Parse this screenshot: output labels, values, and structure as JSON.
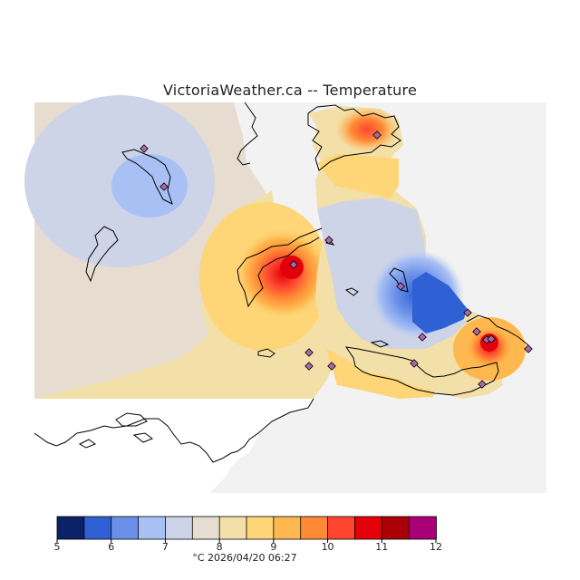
{
  "title": "VictoriaWeather.ca -- Temperature",
  "legend": {
    "ticks": [
      "5",
      "6",
      "7",
      "8",
      "9",
      "10",
      "11",
      "12"
    ],
    "colors": [
      "#0b2266",
      "#2f60d4",
      "#6a90e8",
      "#a9c0f4",
      "#cdd4e8",
      "#e6ddd0",
      "#f2e0a8",
      "#fed577",
      "#ffb84f",
      "#ff8a36",
      "#ff4530",
      "#e40008",
      "#aa0006",
      "#aa0077"
    ]
  },
  "footer": "°C  2026/04/20 06:27",
  "colors": {
    "ocean": "#f2f2f2",
    "land": "#ffffff"
  }
}
